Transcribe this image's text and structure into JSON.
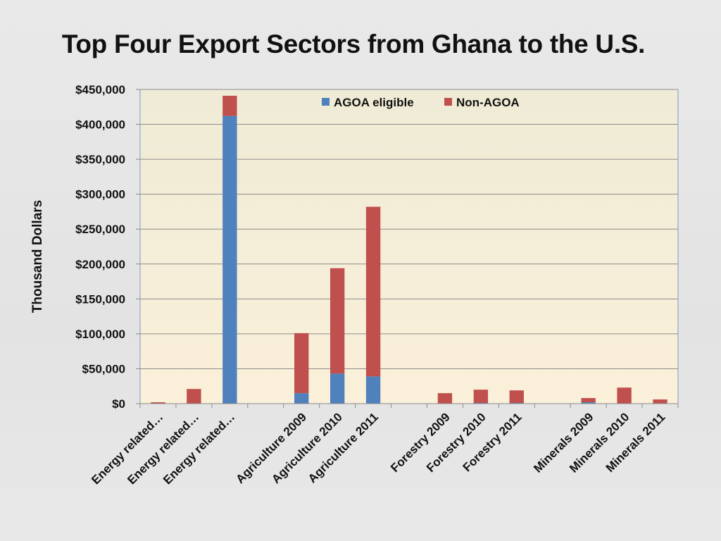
{
  "slide": {
    "title": "Top Four Export Sectors from Ghana to the U.S."
  },
  "colors": {
    "agoa": "#4f81bd",
    "non_agoa": "#c0504d",
    "plot_bg_top": "#efebd6",
    "plot_bg_bottom": "#fbf0d9",
    "gridline": "#8c8c8c",
    "axis": "#8c8c8c"
  },
  "chart_data": {
    "type": "bar",
    "stacked": true,
    "title": "",
    "ylabel": "Thousand Dollars",
    "xlabel": "",
    "ylim": [
      0,
      450000
    ],
    "ytick_values": [
      0,
      50000,
      100000,
      150000,
      200000,
      250000,
      300000,
      350000,
      400000,
      450000
    ],
    "ytick_labels": [
      "$0",
      "$50,000",
      "$100,000",
      "$150,000",
      "$200,000",
      "$250,000",
      "$300,000",
      "$350,000",
      "$400,000",
      "$450,000"
    ],
    "grid": true,
    "legend_position": "top-center",
    "categories": [
      "Energy related…",
      "Energy related…",
      "Energy related…",
      "",
      "Agriculture 2009",
      "Agriculture 2010",
      "Agriculture 2011",
      "",
      "Forestry 2009",
      "Forestry 2010",
      "Forestry 2011",
      "",
      "Minerals 2009",
      "Minerals 2010",
      "Minerals 2011"
    ],
    "series": [
      {
        "name": "AGOA eligible",
        "color_key": "agoa",
        "values": [
          0,
          0,
          412000,
          0,
          15000,
          43000,
          39000,
          0,
          0,
          1000,
          1000,
          0,
          2000,
          0,
          0
        ]
      },
      {
        "name": "Non-AGOA",
        "color_key": "non_agoa",
        "values": [
          2000,
          21000,
          29000,
          0,
          86000,
          151000,
          243000,
          0,
          15000,
          19000,
          18000,
          0,
          6000,
          23000,
          6000
        ]
      }
    ]
  }
}
